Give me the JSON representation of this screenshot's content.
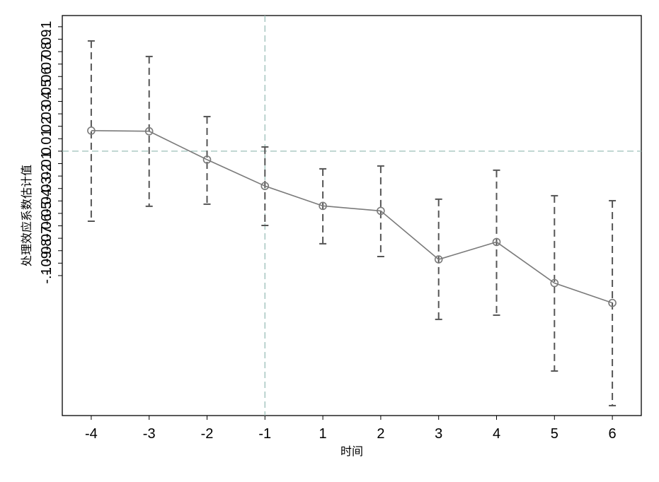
{
  "chart_data": {
    "type": "line",
    "x_label": "时间",
    "y_label": "处理效应系数估计值",
    "categories": [
      "-4",
      "-3",
      "-2",
      "-1",
      "1",
      "2",
      "3",
      "4",
      "5",
      "6"
    ],
    "values": [
      0.0165,
      0.016,
      -0.0068,
      -0.028,
      -0.044,
      -0.048,
      -0.087,
      -0.073,
      -0.106,
      -0.122
    ],
    "ci_upper": [
      0.0886,
      0.0761,
      0.0278,
      0.0034,
      -0.0142,
      -0.0119,
      -0.0386,
      -0.0153,
      -0.0358,
      -0.0398
    ],
    "ci_lower": [
      -0.0563,
      -0.0443,
      -0.0426,
      -0.0597,
      -0.0744,
      -0.0847,
      -0.1352,
      -0.1318,
      -0.1767,
      -0.2045
    ],
    "color": "#7a7a7a",
    "errorbar_color": "#555555",
    "refline_color": "#9bbfb8",
    "vline_at": -1,
    "hline_at": 0,
    "ylim": [
      -0.2125,
      0.109
    ],
    "yticks": [
      {
        "value": -0.1,
        "label": "-.1"
      },
      {
        "value": -0.09,
        "label": "-.09"
      },
      {
        "value": -0.08,
        "label": "-.08"
      },
      {
        "value": -0.07,
        "label": "-.07"
      },
      {
        "value": -0.06,
        "label": "-.06"
      },
      {
        "value": -0.05,
        "label": "-.05"
      },
      {
        "value": -0.04,
        "label": "-.04"
      },
      {
        "value": -0.03,
        "label": "-.03"
      },
      {
        "value": -0.02,
        "label": "-.02"
      },
      {
        "value": -0.01,
        "label": "-.01"
      },
      0,
      {
        "value": 0.01,
        "label": ".01"
      },
      {
        "value": 0.02,
        "label": ".02"
      },
      {
        "value": 0.03,
        "label": ".03"
      },
      {
        "value": 0.04,
        "label": ".04"
      },
      {
        "value": 0.05,
        "label": ".05"
      },
      {
        "value": 0.06,
        "label": ".06"
      },
      {
        "value": 0.07,
        "label": ".07"
      },
      {
        "value": 0.08,
        "label": ".08"
      },
      {
        "value": 0.09,
        "label": ".09"
      },
      {
        "value": 0.1,
        "label": ".1"
      }
    ]
  }
}
